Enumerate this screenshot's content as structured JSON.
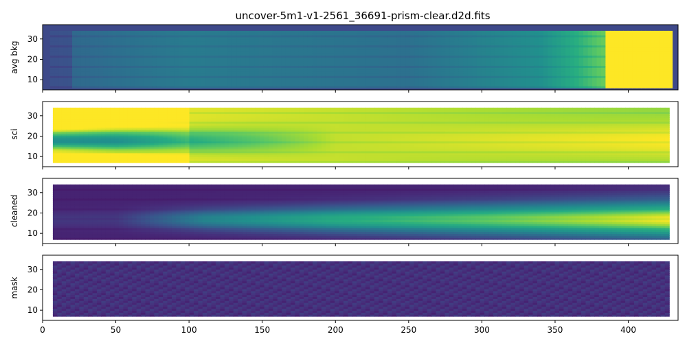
{
  "chart_data": {
    "type": "heatmap",
    "title": "uncover-5m1-v1-2561_36691-prism-clear.d2d.fits",
    "xlim": [
      0,
      434
    ],
    "ylim": [
      5,
      37
    ],
    "x_ticks": [
      "0",
      "50",
      "100",
      "150",
      "200",
      "250",
      "300",
      "350",
      "400"
    ],
    "x_tick_values": [
      0,
      50,
      100,
      150,
      200,
      250,
      300,
      350,
      400
    ],
    "y_ticks": [
      "10",
      "20",
      "30"
    ],
    "y_tick_values": [
      10,
      20,
      30
    ],
    "grid": false,
    "colormap": "viridis",
    "colors": {
      "dark": "#3e4989",
      "mid": "#2a9489",
      "bright": "#fde725",
      "frame": "#000000"
    },
    "panels": [
      {
        "ylabel": "avg bkg",
        "spectrum_x": [
          5,
          430
        ],
        "spectrum_y": [
          6,
          34
        ],
        "background_level": 0.45,
        "description_levels": [
          {
            "x": 10,
            "level": 0.4
          },
          {
            "x": 100,
            "level": 0.5
          },
          {
            "x": 250,
            "level": 0.45
          },
          {
            "x": 340,
            "level": 0.6
          },
          {
            "x": 380,
            "level": 0.85
          },
          {
            "x": 430,
            "level": 1.0
          }
        ]
      },
      {
        "ylabel": "sci",
        "spectrum_x": [
          7,
          428
        ],
        "spectrum_y": [
          7,
          34
        ],
        "trace_center_y": 18,
        "trace_level": [
          {
            "x": 50,
            "level": 0.55
          },
          {
            "x": 100,
            "level": 0.75
          },
          {
            "x": 200,
            "level": 0.95
          },
          {
            "x": 430,
            "level": 1.0
          }
        ],
        "background_level": 0.45
      },
      {
        "ylabel": "cleaned",
        "spectrum_x": [
          7,
          428
        ],
        "spectrum_y": [
          7,
          34
        ],
        "trace_center_y": 17,
        "trace_level": [
          {
            "x": 50,
            "level": 0.2
          },
          {
            "x": 110,
            "level": 0.55
          },
          {
            "x": 200,
            "level": 0.75
          },
          {
            "x": 430,
            "level": 1.0
          }
        ],
        "background_level": 0.12
      },
      {
        "ylabel": "mask",
        "spectrum_x": [
          7,
          428
        ],
        "spectrum_y": [
          7,
          34
        ],
        "background_level": 0.12
      }
    ]
  }
}
